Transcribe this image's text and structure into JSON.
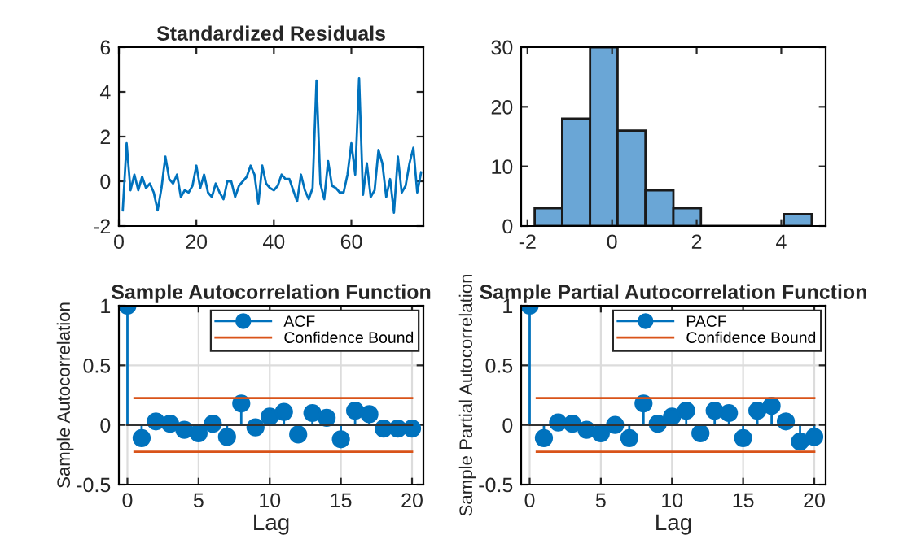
{
  "chart_data": [
    {
      "type": "line",
      "title": "Standardized Residuals",
      "x": [
        1,
        2,
        3,
        4,
        5,
        6,
        7,
        8,
        9,
        10,
        11,
        12,
        13,
        14,
        15,
        16,
        17,
        18,
        19,
        20,
        21,
        22,
        23,
        24,
        25,
        26,
        27,
        28,
        29,
        30,
        31,
        32,
        33,
        34,
        35,
        36,
        37,
        38,
        39,
        40,
        41,
        42,
        43,
        44,
        45,
        46,
        47,
        48,
        49,
        50,
        51,
        52,
        53,
        54,
        55,
        56,
        57,
        58,
        59,
        60,
        61,
        62,
        63,
        64,
        65,
        66,
        67,
        68,
        69,
        70,
        71,
        72,
        73,
        74,
        75,
        76,
        77,
        78
      ],
      "series": [
        {
          "color": "#0072bd",
          "values": [
            -1.3,
            1.7,
            -0.4,
            0.3,
            -0.4,
            0.2,
            -0.3,
            -0.1,
            -0.5,
            -1.3,
            -0.3,
            1.1,
            0.1,
            -0.1,
            0.3,
            -0.7,
            -0.4,
            -0.5,
            -0.2,
            0.7,
            -0.3,
            0.3,
            -0.5,
            -0.7,
            -0.1,
            -0.5,
            -0.8,
            0,
            0,
            -0.7,
            -0.2,
            0,
            0.2,
            0.7,
            0.3,
            -1.0,
            0.7,
            -0.1,
            -0.3,
            -0.4,
            -0.2,
            0.3,
            0.1,
            0.1,
            -0.4,
            -0.9,
            0.3,
            -0.4,
            -0.8,
            -0.3,
            4.5,
            -0.1,
            -0.8,
            0.9,
            -0.2,
            -0.3,
            -0.5,
            -0.5,
            0.3,
            1.7,
            0.3,
            4.6,
            -0.6,
            0.8,
            -0.7,
            -0.4,
            1.4,
            0.8,
            -0.7,
            0.1,
            -1.4,
            1.1,
            -0.5,
            -0.2,
            0.8,
            1.5,
            -0.5,
            0.4
          ]
        }
      ],
      "xlim": [
        0,
        78.6
      ],
      "xticks": [
        0,
        20,
        40,
        60
      ],
      "ylim": [
        -2,
        6
      ],
      "yticks": [
        -2,
        0,
        2,
        4,
        6
      ],
      "grid": false
    },
    {
      "type": "histogram",
      "bins": [
        -1.83,
        -1.18,
        -0.52,
        0.13,
        0.79,
        1.45,
        2.1,
        4.06,
        4.72
      ],
      "values": [
        3,
        18,
        30,
        16,
        6,
        3,
        0,
        2
      ],
      "color": "#6aa6d6",
      "xlim": [
        -2.15,
        5.05
      ],
      "xticks": [
        -2,
        0,
        2,
        4
      ],
      "ylim": [
        0,
        30
      ],
      "yticks": [
        0,
        10,
        20,
        30
      ],
      "grid": false
    },
    {
      "type": "lollipop",
      "title": "Sample Autocorrelation Function",
      "xlabel": "Lag",
      "ylabel": "Sample Autocorrelation",
      "legend": "top right",
      "grid": true,
      "xlim": [
        -0.6,
        20.8
      ],
      "xticks": [
        0,
        5,
        10,
        15,
        20
      ],
      "ylim": [
        -0.5,
        1
      ],
      "yticks": [
        -0.5,
        0,
        0.5,
        1
      ],
      "series": [
        {
          "name": "ACF",
          "color": "#0072bd",
          "marker": "circle",
          "x": [
            0,
            1,
            2,
            3,
            4,
            5,
            6,
            7,
            8,
            9,
            10,
            11,
            12,
            13,
            14,
            15,
            16,
            17,
            18,
            19,
            20
          ],
          "values": [
            1,
            -0.11,
            0.03,
            0.01,
            -0.04,
            -0.07,
            0.01,
            -0.1,
            0.18,
            -0.02,
            0.07,
            0.11,
            -0.08,
            0.1,
            0.06,
            -0.12,
            0.12,
            0.09,
            -0.03,
            -0.03,
            -0.03
          ]
        },
        {
          "type": "line",
          "name": "Confidence Bound",
          "color": "#d95319",
          "x": [
            0.5,
            20
          ],
          "values": [
            0.225,
            0.225
          ]
        },
        {
          "type": "line",
          "color": "#d95319",
          "x": [
            0.5,
            20
          ],
          "values": [
            -0.225,
            -0.225
          ]
        }
      ]
    },
    {
      "type": "lollipop",
      "title": "Sample Partial Autocorrelation Function",
      "xlabel": "Lag",
      "ylabel": "Sample Partial Autocorrelation",
      "legend": "top right",
      "grid": true,
      "xlim": [
        -0.6,
        20.8
      ],
      "xticks": [
        0,
        5,
        10,
        15,
        20
      ],
      "ylim": [
        -0.5,
        1
      ],
      "yticks": [
        -0.5,
        0,
        0.5,
        1
      ],
      "series": [
        {
          "name": "PACF",
          "color": "#0072bd",
          "marker": "circle",
          "x": [
            0,
            1,
            2,
            3,
            4,
            5,
            6,
            7,
            8,
            9,
            10,
            11,
            12,
            13,
            14,
            15,
            16,
            17,
            18,
            19,
            20
          ],
          "values": [
            1,
            -0.11,
            0.02,
            0.01,
            -0.04,
            -0.07,
            0.0,
            -0.11,
            0.18,
            0.01,
            0.07,
            0.12,
            -0.07,
            0.12,
            0.1,
            -0.11,
            0.12,
            0.16,
            0.03,
            -0.14,
            -0.1
          ]
        },
        {
          "type": "line",
          "name": "Confidence Bound",
          "color": "#d95319",
          "x": [
            0.5,
            20
          ],
          "values": [
            0.225,
            0.225
          ]
        },
        {
          "type": "line",
          "color": "#d95319",
          "x": [
            0.5,
            20
          ],
          "values": [
            -0.225,
            -0.225
          ]
        }
      ]
    }
  ]
}
